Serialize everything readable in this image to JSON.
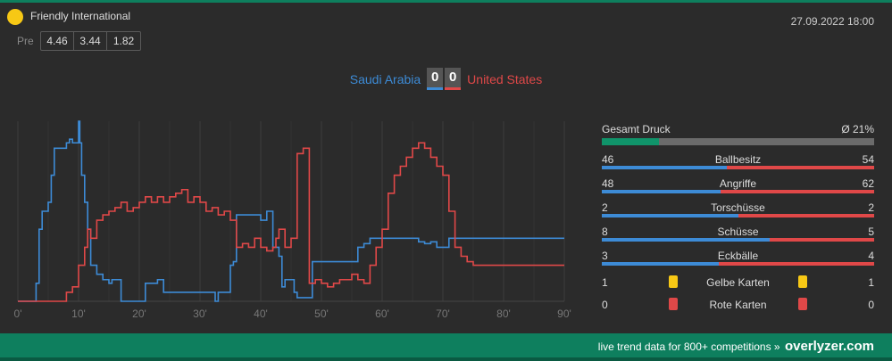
{
  "match": {
    "competition": "Friendly International",
    "datetime": "27.09.2022 18:00",
    "pre_label": "Pre",
    "odds": [
      "4.46",
      "3.44",
      "1.82"
    ],
    "home_team": "Saudi Arabia",
    "away_team": "United States",
    "home_score": "0",
    "away_score": "0"
  },
  "colors": {
    "home": "#3d8bd6",
    "away": "#e04848",
    "accent": "#0e7f5e",
    "competition_dot": "#f7c815"
  },
  "pressure": {
    "label": "Gesamt Druck",
    "value": "Ø 21%",
    "fraction": 0.21
  },
  "stats": [
    {
      "name": "Ballbesitz",
      "home": "46",
      "away": "54"
    },
    {
      "name": "Angriffe",
      "home": "48",
      "away": "62"
    },
    {
      "name": "Torschüsse",
      "home": "2",
      "away": "2"
    },
    {
      "name": "Schüsse",
      "home": "8",
      "away": "5"
    },
    {
      "name": "Eckbälle",
      "home": "3",
      "away": "4"
    }
  ],
  "cards": [
    {
      "name": "Gelbe Karten",
      "home": "1",
      "away": "1",
      "color": "yellow"
    },
    {
      "name": "Rote Karten",
      "home": "0",
      "away": "0",
      "color": "red"
    }
  ],
  "footer": {
    "text": "live trend data for 800+ competitions »",
    "brand": "overlyzer.com"
  },
  "chart_data": {
    "type": "line",
    "x_ticks": [
      "0'",
      "10'",
      "20'",
      "30'",
      "40'",
      "50'",
      "60'",
      "70'",
      "80'",
      "90'"
    ],
    "xlim": [
      0,
      90
    ],
    "ylim": [
      0,
      100
    ],
    "grid": true,
    "series": [
      {
        "name": "Saudi Arabia",
        "color": "#3d8bd6",
        "x": [
          0,
          2,
          3,
          3.5,
          4,
          5,
          5.5,
          6,
          8,
          8.5,
          9,
          10,
          10.2,
          10.5,
          11,
          11.5,
          12,
          13,
          14,
          15,
          15.5,
          17,
          18,
          21,
          23,
          24,
          25,
          27,
          30,
          32,
          32.5,
          33,
          34,
          35,
          35.5,
          36,
          39,
          40,
          41,
          42,
          43,
          43.5,
          44,
          45.5,
          46,
          46.5,
          47,
          48,
          48.5,
          50,
          51,
          52,
          52.5,
          53,
          54,
          56,
          57,
          58,
          59,
          60,
          61,
          62,
          63,
          64,
          65,
          66,
          67,
          68,
          69,
          70,
          71,
          72,
          73,
          74,
          75,
          76,
          77,
          78,
          79,
          80,
          81,
          81.5,
          82,
          82.5,
          83,
          83.5,
          84,
          85,
          86,
          87,
          88,
          89,
          90
        ],
        "y": [
          0,
          0,
          10,
          40,
          50,
          55,
          70,
          85,
          88,
          90,
          88,
          100,
          88,
          70,
          55,
          40,
          20,
          15,
          12,
          10,
          12,
          0,
          0,
          10,
          12,
          5,
          5,
          5,
          5,
          5,
          0,
          5,
          5,
          20,
          22,
          48,
          48,
          45,
          50,
          30,
          25,
          8,
          12,
          5,
          2,
          2,
          2,
          2,
          22,
          22,
          22,
          22,
          22,
          22,
          22,
          30,
          32,
          35,
          35,
          35,
          35,
          35,
          35,
          35,
          35,
          33,
          32,
          33,
          30,
          30,
          35,
          35,
          35,
          35,
          35,
          35,
          35,
          35,
          35,
          35,
          35,
          35,
          35,
          35,
          35,
          35,
          35,
          35,
          35,
          35,
          35,
          35,
          35
        ]
      },
      {
        "name": "United States",
        "color": "#e04848",
        "x": [
          0,
          2,
          5,
          7,
          8,
          9,
          10,
          11,
          11.5,
          12,
          13,
          14,
          15,
          16,
          17,
          18,
          19,
          20,
          21,
          22,
          23,
          24,
          25,
          26,
          27,
          28,
          29,
          30,
          31,
          32,
          33,
          34,
          35,
          36,
          37,
          38,
          39,
          40,
          41,
          42,
          42.5,
          43,
          44,
          45,
          46,
          47,
          48,
          49,
          50,
          51,
          52,
          53,
          54,
          55,
          56,
          57,
          58,
          59,
          60,
          61,
          62,
          63,
          64,
          65,
          66,
          67,
          68,
          69,
          70,
          71,
          72,
          73,
          74,
          75,
          76,
          77,
          78,
          79,
          80,
          81,
          82,
          83,
          84,
          85,
          86,
          87,
          88,
          89,
          90
        ],
        "y": [
          0,
          0,
          0,
          0,
          5,
          8,
          20,
          30,
          40,
          35,
          45,
          48,
          50,
          52,
          55,
          50,
          52,
          55,
          58,
          55,
          58,
          55,
          58,
          60,
          62,
          55,
          58,
          55,
          50,
          52,
          48,
          50,
          45,
          30,
          32,
          30,
          35,
          30,
          28,
          30,
          35,
          40,
          30,
          35,
          82,
          85,
          10,
          12,
          10,
          8,
          10,
          12,
          12,
          15,
          12,
          10,
          20,
          30,
          40,
          60,
          70,
          75,
          80,
          85,
          88,
          85,
          80,
          75,
          70,
          50,
          30,
          25,
          22,
          20,
          20,
          20,
          20,
          20,
          20,
          20,
          20,
          20,
          20,
          20,
          20,
          20,
          20,
          20,
          20
        ]
      }
    ]
  }
}
